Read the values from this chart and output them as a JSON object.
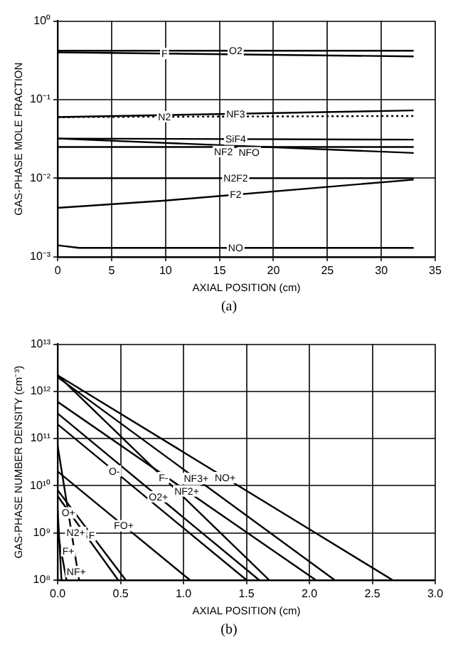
{
  "chart_data": [
    {
      "type": "line",
      "xlabel": "AXIAL POSITION (cm)",
      "ylabel": "GAS-PHASE MOLE FRACTION",
      "log": "y",
      "grid": true,
      "legend": false,
      "marker": "none",
      "xlim": [
        0,
        35
      ],
      "xticks": [
        0,
        5,
        10,
        15,
        20,
        25,
        30,
        35
      ],
      "ylim": [
        0.001,
        1
      ],
      "yticks": [
        {
          "value": 1,
          "label": "10⁰"
        },
        {
          "value": 0.1,
          "label": "10⁻¹"
        },
        {
          "value": 0.01,
          "label": "10⁻²"
        },
        {
          "value": 0.001,
          "label": "10⁻³"
        }
      ],
      "annotations": [
        "(a)"
      ],
      "series": [
        {
          "name": "O2",
          "color": "#000000",
          "x": [
            0,
            33
          ],
          "values": [
            0.42,
            0.42
          ]
        },
        {
          "name": "F",
          "color": "#000000",
          "x": [
            0,
            33
          ],
          "values": [
            0.4,
            0.355
          ]
        },
        {
          "name": "NF3",
          "color": "#000000",
          "x": [
            0,
            33
          ],
          "values": [
            0.06,
            0.073
          ]
        },
        {
          "name": "N2",
          "color": "#000000",
          "line_style": "dotted",
          "x": [
            0,
            33
          ],
          "values": [
            0.06,
            0.062
          ]
        },
        {
          "name": "SiF4",
          "color": "#000000",
          "x": [
            0,
            33
          ],
          "values": [
            0.032,
            0.031
          ]
        },
        {
          "name": "NFO",
          "color": "#000000",
          "x": [
            0,
            33
          ],
          "values": [
            0.025,
            0.025
          ]
        },
        {
          "name": "NF2",
          "color": "#000000",
          "x": [
            0,
            33
          ],
          "values": [
            0.032,
            0.021
          ]
        },
        {
          "name": "N2F2",
          "color": "#000000",
          "x": [
            0,
            33
          ],
          "values": [
            0.01,
            0.01
          ]
        },
        {
          "name": "F2",
          "color": "#000000",
          "x": [
            0,
            10,
            33
          ],
          "values": [
            0.0042,
            0.0052,
            0.0096
          ]
        },
        {
          "name": "NO",
          "color": "#000000",
          "x": [
            0,
            2,
            33
          ],
          "values": [
            0.0014,
            0.0013,
            0.0013
          ]
        }
      ]
    },
    {
      "type": "line",
      "xlabel": "AXIAL POSITION (cm)",
      "ylabel": "GAS-PHASE NUMBER DENSITY (cm⁻³)",
      "log": "y",
      "grid": true,
      "legend": false,
      "marker": "none",
      "xlim": [
        0,
        3
      ],
      "xticks": [
        {
          "value": 0,
          "label": "0.0"
        },
        0.5,
        {
          "value": 1,
          "label": "1.0"
        },
        1.5,
        {
          "value": 2,
          "label": "2.0"
        },
        2.5,
        {
          "value": 3,
          "label": "3.0"
        }
      ],
      "ylim": [
        100000000.0,
        10000000000000.0
      ],
      "yticks": [
        {
          "value": 10000000000000.0,
          "label": "10¹³"
        },
        {
          "value": 1000000000000.0,
          "label": "10¹²"
        },
        {
          "value": 100000000000.0,
          "label": "10¹¹"
        },
        {
          "value": 10000000000.0,
          "label": "10¹⁰"
        },
        {
          "value": 1000000000.0,
          "label": "10⁹"
        },
        {
          "value": 100000000.0,
          "label": "10⁸"
        }
      ],
      "annotations": [
        "(b)"
      ],
      "series": [
        {
          "name": "NO+",
          "color": "#000000",
          "x": [
            0,
            2.66
          ],
          "values": [
            2200000000000.0,
            100000000.0
          ]
        },
        {
          "name": "NF3+",
          "color": "#000000",
          "x": [
            0,
            2.2
          ],
          "values": [
            2000000000000.0,
            100000000.0
          ]
        },
        {
          "name": "NF2+",
          "color": "#000000",
          "x": [
            0,
            2.05
          ],
          "values": [
            600000000000.0,
            100000000.0
          ]
        },
        {
          "name": "F-",
          "color": "#000000",
          "x": [
            0,
            1.68
          ],
          "values": [
            2200000000000.0,
            100000000.0
          ]
        },
        {
          "name": "O2+",
          "color": "#000000",
          "x": [
            0,
            1.6
          ],
          "values": [
            340000000000.0,
            100000000.0
          ]
        },
        {
          "name": "O-",
          "color": "#000000",
          "x": [
            0,
            1.5
          ],
          "values": [
            200000000000.0,
            100000000.0
          ]
        },
        {
          "name": "FO+",
          "color": "#000000",
          "x": [
            0,
            1.05
          ],
          "values": [
            20000000000.0,
            100000000.0
          ]
        },
        {
          "name": "F",
          "color": "#000000",
          "x": [
            0,
            0.54
          ],
          "values": [
            8000000000.0,
            100000000.0
          ]
        },
        {
          "name": "N2+",
          "color": "#000000",
          "x": [
            0,
            0.48
          ],
          "values": [
            6000000000.0,
            100000000.0
          ]
        },
        {
          "name": "O+",
          "color": "#000000",
          "x": [
            0,
            0.17
          ],
          "values": [
            70000000000.0,
            100000000.0
          ]
        },
        {
          "name": "F+",
          "color": "#000000",
          "x": [
            0,
            0.03
          ],
          "values": [
            3000000000.0,
            100000000.0
          ]
        },
        {
          "name": "NF+",
          "color": "#000000",
          "x": [
            0,
            0.07
          ],
          "values": [
            1000000000.0,
            100000000.0
          ]
        }
      ]
    }
  ]
}
